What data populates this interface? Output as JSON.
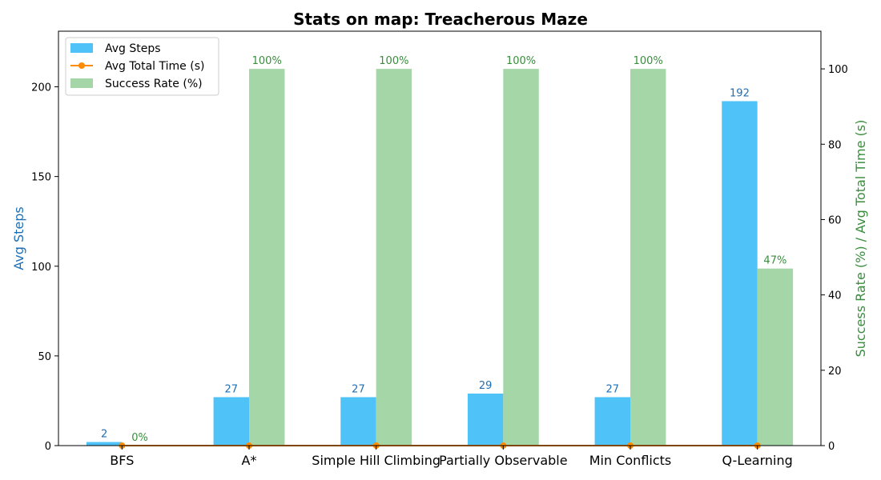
{
  "chart_data": {
    "type": "bar",
    "title": "Stats on map: Treacherous Maze",
    "categories": [
      "BFS",
      "A*",
      "Simple Hill Climbing",
      "Partially Observable",
      "Min Conflicts",
      "Q-Learning"
    ],
    "series": [
      {
        "name": "Avg Steps",
        "axis": "left",
        "kind": "bar",
        "color": "#4fc3f7",
        "values": [
          2,
          27,
          27,
          29,
          27,
          192
        ],
        "labels": [
          "2",
          "27",
          "27",
          "29",
          "27",
          "192"
        ],
        "label_color": "#1f6fb5"
      },
      {
        "name": "Avg Total Time (s)",
        "axis": "right",
        "kind": "line",
        "color": "#ff8c00",
        "values": [
          0,
          0,
          0,
          0,
          0,
          0
        ]
      },
      {
        "name": "Success Rate (%)",
        "axis": "right",
        "kind": "bar",
        "color": "#a5d6a7",
        "values": [
          0,
          100,
          100,
          100,
          100,
          47
        ],
        "labels": [
          "0%",
          "100%",
          "100%",
          "100%",
          "100%",
          "47%"
        ],
        "label_color": "#388e3c"
      }
    ],
    "left_axis": {
      "label": "Avg Steps",
      "ylim": [
        0,
        231
      ],
      "ticks": [
        0,
        50,
        100,
        150,
        200
      ],
      "color": "#1f6fb5"
    },
    "right_axis": {
      "label": "Success Rate (%) / Avg Total Time (s)",
      "ylim": [
        0,
        110
      ],
      "ticks": [
        0,
        20,
        40,
        60,
        80,
        100
      ],
      "color": "#388e3c"
    },
    "legend_position": "upper-left",
    "grid": false
  }
}
